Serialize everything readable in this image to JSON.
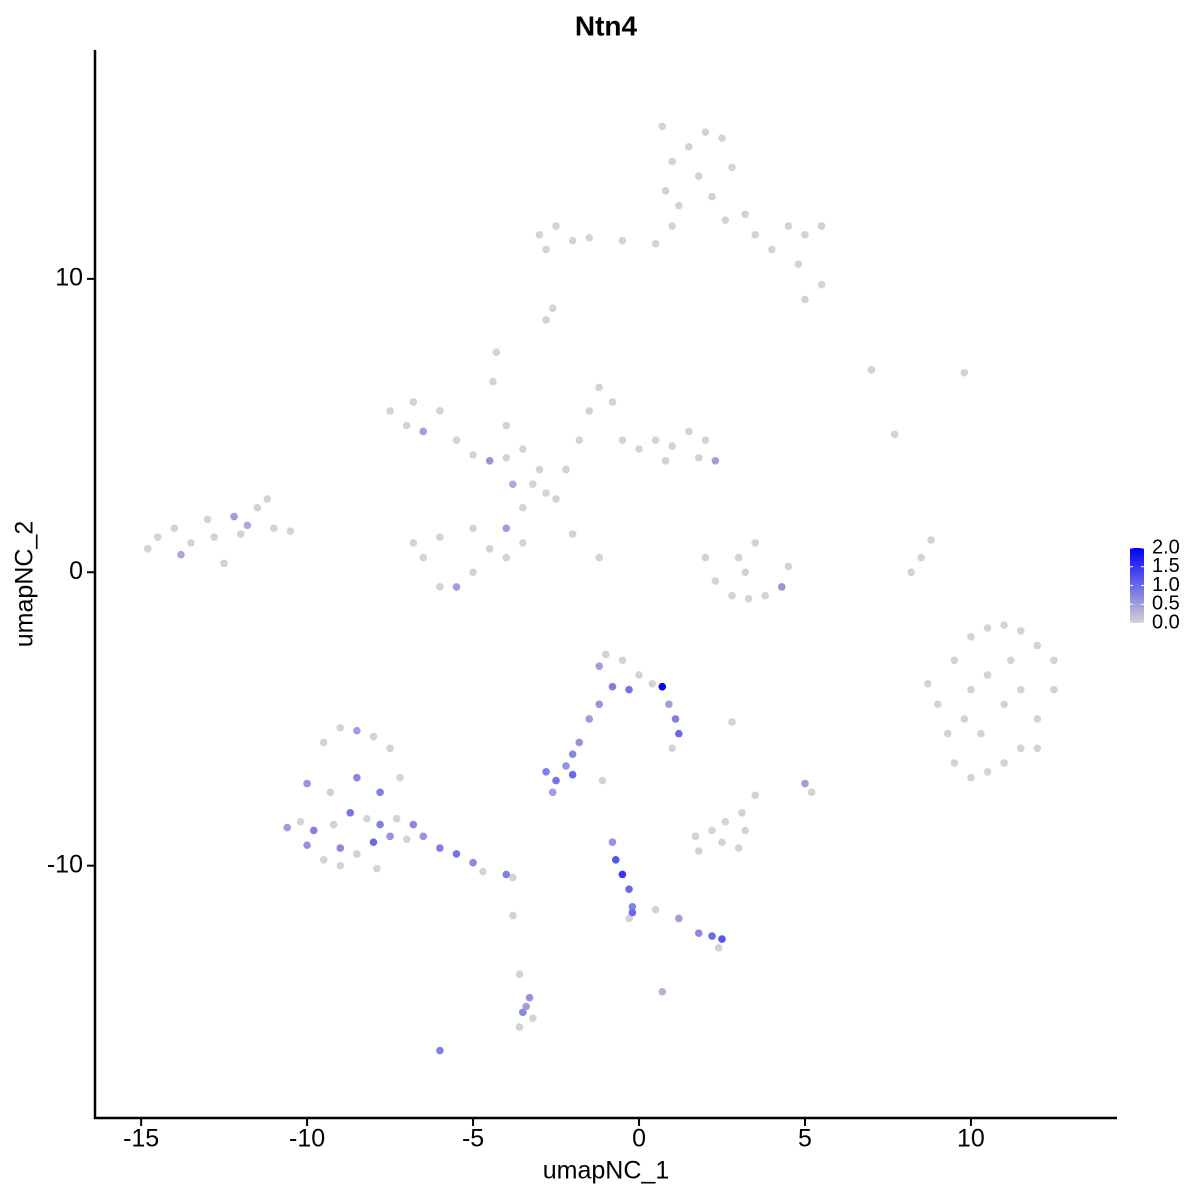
{
  "chart_data": {
    "type": "scatter",
    "title": "Ntn4",
    "x_label": "umapNC_1",
    "y_label": "umapNC_2",
    "xlim": [
      -16.39,
      14.4
    ],
    "ylim": [
      -18.6,
      17.8
    ],
    "xticks": [
      -15,
      -10,
      -5,
      0,
      5,
      10
    ],
    "yticks": [
      -10,
      0,
      10
    ],
    "x": [
      -3,
      -2.5,
      -2,
      -2.8,
      -1.5,
      -0.5,
      0.5,
      1,
      0.8,
      1,
      1.5,
      2,
      2.5,
      1.8,
      2.2,
      2.8,
      1.2,
      0.7,
      2.6,
      3.2,
      3.5,
      4,
      4.5,
      5,
      5.5,
      4.8,
      5.5,
      5,
      -2.6,
      -2.8,
      -7.5,
      -6.8,
      -6,
      -7,
      -6.5,
      -5.5,
      -5,
      -4.5,
      -4,
      -3.5,
      -4.3,
      -4.4,
      -4,
      -3,
      -3.2,
      -2.8,
      -2.2,
      -1.8,
      -1.5,
      -1.2,
      -0.8,
      -0.5,
      0,
      0.5,
      1,
      1.5,
      2,
      2.3,
      1.8,
      0.8,
      -3.5,
      -4,
      -5,
      -6,
      -6.5,
      -6,
      -5.5,
      -5,
      -4,
      -1.2,
      -14.8,
      -14.5,
      -14,
      -13.8,
      -13.5,
      -13,
      -12.8,
      -12.5,
      -12.2,
      -12,
      -11.5,
      -11.2,
      -11,
      -10.5,
      -11.8,
      2,
      2.3,
      2.8,
      3.3,
      3.8,
      4.3,
      3,
      3.5,
      3.2,
      4.5,
      8.2,
      8.5,
      8.8,
      7,
      9.8,
      7.7,
      8.7,
      9,
      9.3,
      9.5,
      10,
      10.5,
      11,
      11.5,
      12,
      12.5,
      12.5,
      12,
      11.5,
      11,
      10.5,
      10,
      9.5,
      10,
      10.5,
      11,
      11.5,
      10.3,
      11.2,
      9.8,
      12,
      -1,
      -1.2,
      -0.5,
      0,
      0.4,
      -0.8,
      -0.3,
      0.7,
      0.9,
      1.1,
      1.2,
      -1.2,
      -1.5,
      -1.8,
      -2,
      -2.8,
      -2.5,
      -2,
      -2.2,
      -2.6,
      -0.8,
      -0.7,
      -0.5,
      -0.3,
      -0.2,
      -0.2,
      -0.3,
      0.5,
      1.2,
      1.8,
      2.2,
      2.5,
      2.4,
      0.7,
      1,
      2.8,
      -1.1,
      5,
      5.2,
      3.5,
      1.8,
      2.2,
      2.5,
      3,
      3.2,
      2.6,
      1.7,
      3.1,
      -9.5,
      -9,
      -8.5,
      -8,
      -7.5,
      -7.2,
      -10,
      -9.3,
      -8.5,
      -7.8,
      -10.2,
      -9.8,
      -9.2,
      -8.7,
      -8.2,
      -7.8,
      -7.3,
      -10.6,
      -10,
      -9.5,
      -9,
      -8.5,
      -8,
      -7.5,
      -7,
      -7.9,
      -6.5,
      -6,
      -5.5,
      -5,
      -4.7,
      -4,
      -3.8,
      -6.8,
      -9,
      -3.8,
      -3.6,
      -3.3,
      -3.5,
      -3.2,
      -3.6,
      -6,
      -3.4,
      -4.5,
      -3.5,
      -2,
      -6.8,
      -3.8,
      -2.5
    ],
    "y": [
      11.5,
      11.8,
      11.3,
      11,
      11.4,
      11.3,
      11.2,
      11.8,
      13,
      14,
      14.5,
      15,
      14.8,
      13.5,
      12.8,
      13.8,
      12.5,
      15.2,
      12,
      12.2,
      11.5,
      11,
      11.8,
      11.5,
      11.8,
      10.5,
      9.8,
      9.3,
      9,
      8.6,
      5.5,
      5.8,
      5.5,
      5,
      4.8,
      4.5,
      4,
      3.8,
      3.9,
      4.2,
      7.5,
      6.5,
      5,
      3.5,
      3,
      2.7,
      3.5,
      4.5,
      5.5,
      6.3,
      5.8,
      4.5,
      4.2,
      4.5,
      4.3,
      4.8,
      4.5,
      3.8,
      3.9,
      3.8,
      2.2,
      1.5,
      1.5,
      1.2,
      0.5,
      -0.5,
      -0.5,
      0,
      0.5,
      0.5,
      0.8,
      1.2,
      1.5,
      0.6,
      1,
      1.8,
      1.2,
      0.3,
      1.9,
      1.3,
      2.2,
      2.5,
      1.5,
      1.4,
      1.6,
      0.5,
      -0.3,
      -0.8,
      -0.9,
      -0.8,
      -0.5,
      0.5,
      1,
      0,
      0.2,
      0,
      0.5,
      1.1,
      6.9,
      6.8,
      4.7,
      -3.8,
      -4.5,
      -5.5,
      -6.5,
      -7,
      -6.8,
      -6.5,
      -6,
      -5,
      -4,
      -3,
      -2.5,
      -2,
      -1.8,
      -1.9,
      -2.2,
      -3,
      -4,
      -3.5,
      -4.5,
      -4,
      -5.5,
      -3,
      -5,
      -6,
      -2.8,
      -3.2,
      -3,
      -3.5,
      -3.8,
      -3.9,
      -4,
      -3.9,
      -4.5,
      -5,
      -5.5,
      -4.5,
      -5,
      -5.8,
      -6.2,
      -6.8,
      -7.1,
      -6.9,
      -6.6,
      -7.5,
      -9.2,
      -9.8,
      -10.3,
      -10.8,
      -11.4,
      -11.6,
      -11.8,
      -11.5,
      -11.8,
      -12.3,
      -12.4,
      -12.5,
      -12.8,
      -14.3,
      -6,
      -5.1,
      -7.1,
      -7.2,
      -7.5,
      -7.6,
      -9.5,
      -8.8,
      -9.2,
      -9.4,
      -8.8,
      -8.5,
      -9,
      -8.2,
      -5.8,
      -5.3,
      -5.4,
      -5.6,
      -6,
      -7,
      -7.2,
      -7.5,
      -7,
      -7.5,
      -8.5,
      -8.8,
      -8.6,
      -8.2,
      -8.4,
      -8.6,
      -8.4,
      -8.7,
      -9.3,
      -9.8,
      -9.4,
      -9.6,
      -9.2,
      -9,
      -9.1,
      -10.1,
      -9,
      -9.4,
      -9.6,
      -9.9,
      -10.2,
      -10.3,
      -10.4,
      -8.6,
      -10,
      -11.7,
      -13.7,
      -14.5,
      -15,
      -15.2,
      -15.5,
      -16.3,
      -14.8,
      0.8,
      1,
      1.3,
      1,
      3,
      2.5
    ],
    "expression": [
      0,
      0,
      0,
      0,
      0,
      0,
      0,
      0,
      0,
      0,
      0,
      0,
      0,
      0,
      0,
      0,
      0,
      0,
      0,
      0,
      0,
      0,
      0,
      0,
      0,
      0,
      0,
      0,
      0,
      0,
      0,
      0,
      0,
      0,
      0.5,
      0,
      0,
      0.6,
      0,
      0,
      0,
      0,
      0,
      0,
      0,
      0,
      0,
      0,
      0,
      0,
      0,
      0,
      0,
      0,
      0,
      0,
      0,
      0.5,
      0,
      0,
      0,
      0.5,
      0,
      0,
      0,
      0,
      0.5,
      0,
      0,
      0,
      0,
      0,
      0,
      0.4,
      0,
      0,
      0,
      0,
      0.5,
      0,
      0,
      0,
      0,
      0,
      0.4,
      0,
      0,
      0,
      0,
      0,
      0.6,
      0,
      0,
      0,
      0,
      0,
      0,
      0,
      0,
      0,
      0,
      0,
      0,
      0,
      0,
      0,
      0,
      0,
      0,
      0,
      0,
      0,
      0,
      0,
      0,
      0,
      0,
      0,
      0,
      0,
      0,
      0,
      0,
      0,
      0,
      0,
      0,
      0.5,
      0,
      0,
      0,
      0.8,
      0.9,
      2.0,
      0.5,
      0.8,
      1.0,
      0.6,
      0.5,
      0.6,
      0.7,
      0.8,
      0.9,
      1.0,
      0.6,
      0.5,
      0.6,
      1.2,
      1.5,
      1.0,
      0.8,
      1.0,
      0,
      0,
      0.5,
      0.7,
      1.0,
      1.2,
      0,
      0.3,
      0,
      0,
      0,
      0.5,
      0,
      0,
      0,
      0,
      0,
      0,
      0,
      0,
      0,
      0,
      0,
      0,
      0.5,
      0,
      0,
      0,
      0.6,
      0,
      0.7,
      0.8,
      0,
      0.8,
      0,
      0.9,
      0,
      0.8,
      0,
      0.5,
      0.6,
      0,
      0.7,
      0,
      1.0,
      0.6,
      0,
      0,
      0.6,
      0.8,
      0.9,
      0.7,
      0,
      0.8,
      0,
      0.7,
      0,
      0,
      0,
      0.6,
      0.7,
      0,
      0,
      0.8,
      0.5,
      0,
      0,
      0,
      0,
      0.4,
      0
    ],
    "colorbar": {
      "lim": [
        0,
        2
      ],
      "colors": [
        "#d3d3d3",
        "#0000ff"
      ],
      "ticks": [
        {
          "value": 0,
          "label": "0.0"
        },
        {
          "value": 0.5,
          "label": "0.5"
        },
        {
          "value": 1,
          "label": "1.0"
        },
        {
          "value": 1.5,
          "label": "1.5"
        },
        {
          "value": 2,
          "label": "2.0"
        }
      ]
    }
  }
}
